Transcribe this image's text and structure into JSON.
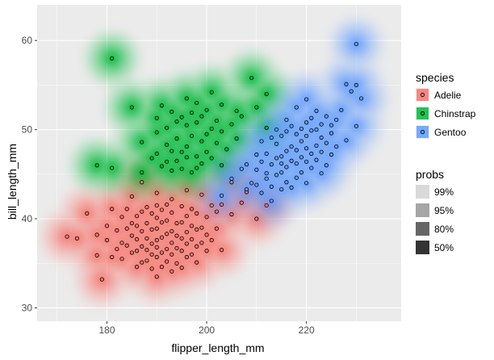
{
  "chart_data": {
    "type": "scatter",
    "overlay": "2d density contour bands (highest density regions)",
    "xlabel": "flipper_length_mm",
    "ylabel": "bill_length_mm",
    "xlim": [
      166,
      239
    ],
    "ylim": [
      28.5,
      64.0
    ],
    "x_ticks": [
      180,
      200,
      220
    ],
    "y_ticks": [
      30,
      40,
      50,
      60
    ],
    "grid": true,
    "legend_position": "right",
    "color_legend": {
      "title": "species",
      "entries": [
        {
          "label": "Adelie",
          "color": "#F8766D"
        },
        {
          "label": "Chinstrap",
          "color": "#00BA38"
        },
        {
          "label": "Gentoo",
          "color": "#619CFF"
        }
      ]
    },
    "probs_legend": {
      "title": "probs",
      "entries": [
        {
          "label": "99%",
          "fill": "#d9d9d9"
        },
        {
          "label": "95%",
          "fill": "#a6a6a6"
        },
        {
          "label": "80%",
          "fill": "#666666"
        },
        {
          "label": "50%",
          "fill": "#333333"
        }
      ]
    },
    "series": [
      {
        "name": "Adelie",
        "color": "#F8766D",
        "points": [
          [
            172,
            38.0
          ],
          [
            174,
            37.8
          ],
          [
            176,
            40.6
          ],
          [
            178,
            38.2
          ],
          [
            178,
            35.9
          ],
          [
            179,
            33.2
          ],
          [
            180,
            37.6
          ],
          [
            180,
            39.2
          ],
          [
            181,
            35.7
          ],
          [
            181,
            41.1
          ],
          [
            182,
            36.6
          ],
          [
            182,
            38.7
          ],
          [
            183,
            35.5
          ],
          [
            183,
            37.3
          ],
          [
            183,
            40.2
          ],
          [
            184,
            37.0
          ],
          [
            184,
            38.9
          ],
          [
            184,
            41.1
          ],
          [
            185,
            36.2
          ],
          [
            185,
            38.1
          ],
          [
            185,
            39.5
          ],
          [
            185,
            42.5
          ],
          [
            186,
            34.6
          ],
          [
            186,
            36.4
          ],
          [
            186,
            37.7
          ],
          [
            186,
            39.2
          ],
          [
            186,
            40.3
          ],
          [
            187,
            35.1
          ],
          [
            187,
            36.9
          ],
          [
            187,
            38.6
          ],
          [
            187,
            40.8
          ],
          [
            187,
            44.1
          ],
          [
            188,
            35.3
          ],
          [
            188,
            36.5
          ],
          [
            188,
            37.8
          ],
          [
            188,
            39.5
          ],
          [
            188,
            41.3
          ],
          [
            189,
            34.4
          ],
          [
            189,
            36.0
          ],
          [
            189,
            37.2
          ],
          [
            189,
            38.8
          ],
          [
            189,
            40.6
          ],
          [
            190,
            33.5
          ],
          [
            190,
            35.7
          ],
          [
            190,
            36.8
          ],
          [
            190,
            37.6
          ],
          [
            190,
            38.9
          ],
          [
            190,
            40.1
          ],
          [
            190,
            41.5
          ],
          [
            190,
            42.9
          ],
          [
            191,
            34.6
          ],
          [
            191,
            36.2
          ],
          [
            191,
            37.9
          ],
          [
            191,
            39.6
          ],
          [
            191,
            41.0
          ],
          [
            192,
            35.2
          ],
          [
            192,
            36.6
          ],
          [
            192,
            38.3
          ],
          [
            192,
            39.8
          ],
          [
            192,
            41.6
          ],
          [
            193,
            34.1
          ],
          [
            193,
            36.0
          ],
          [
            193,
            37.3
          ],
          [
            193,
            38.6
          ],
          [
            193,
            40.7
          ],
          [
            193,
            42.2
          ],
          [
            194,
            35.0
          ],
          [
            194,
            36.7
          ],
          [
            194,
            38.1
          ],
          [
            194,
            39.5
          ],
          [
            195,
            34.5
          ],
          [
            195,
            36.4
          ],
          [
            195,
            37.8
          ],
          [
            195,
            39.6
          ],
          [
            195,
            41.4
          ],
          [
            196,
            35.7
          ],
          [
            196,
            37.2
          ],
          [
            196,
            38.5
          ],
          [
            196,
            40.3
          ],
          [
            196,
            43.2
          ],
          [
            197,
            36.0
          ],
          [
            197,
            37.7
          ],
          [
            197,
            39.2
          ],
          [
            197,
            41.1
          ],
          [
            198,
            35.1
          ],
          [
            198,
            36.9
          ],
          [
            198,
            38.8
          ],
          [
            198,
            40.6
          ],
          [
            199,
            37.3
          ],
          [
            199,
            39.0
          ],
          [
            199,
            42.7
          ],
          [
            200,
            36.4
          ],
          [
            200,
            38.2
          ],
          [
            200,
            40.2
          ],
          [
            201,
            37.6
          ],
          [
            201,
            41.5
          ],
          [
            202,
            38.9
          ],
          [
            202,
            40.8
          ],
          [
            203,
            36.5
          ],
          [
            203,
            41.6
          ],
          [
            205,
            40.5
          ],
          [
            205,
            44.1
          ],
          [
            207,
            41.8
          ],
          [
            208,
            43.0
          ],
          [
            210,
            40.0
          ],
          [
            212,
            41.5
          ]
        ]
      },
      {
        "name": "Chinstrap",
        "color": "#00BA38",
        "points": [
          [
            181,
            58.0
          ],
          [
            178,
            46.0
          ],
          [
            181,
            45.7
          ],
          [
            185,
            52.5
          ],
          [
            187,
            48.6
          ],
          [
            187,
            45.2
          ],
          [
            189,
            46.8
          ],
          [
            190,
            49.7
          ],
          [
            190,
            47.3
          ],
          [
            190,
            51.3
          ],
          [
            191,
            45.9
          ],
          [
            191,
            52.7
          ],
          [
            192,
            46.4
          ],
          [
            192,
            50.2
          ],
          [
            192,
            48.3
          ],
          [
            193,
            47.6
          ],
          [
            193,
            52.0
          ],
          [
            193,
            45.4
          ],
          [
            194,
            49.0
          ],
          [
            194,
            46.5
          ],
          [
            194,
            50.9
          ],
          [
            195,
            47.5
          ],
          [
            195,
            45.6
          ],
          [
            195,
            51.4
          ],
          [
            196,
            48.1
          ],
          [
            196,
            46.9
          ],
          [
            196,
            53.5
          ],
          [
            196,
            50.5
          ],
          [
            197,
            45.2
          ],
          [
            197,
            49.3
          ],
          [
            197,
            51.9
          ],
          [
            198,
            47.0
          ],
          [
            198,
            50.8
          ],
          [
            198,
            45.7
          ],
          [
            198,
            53.0
          ],
          [
            199,
            48.7
          ],
          [
            199,
            46.2
          ],
          [
            199,
            51.5
          ],
          [
            200,
            49.5
          ],
          [
            200,
            47.5
          ],
          [
            200,
            52.2
          ],
          [
            201,
            46.8
          ],
          [
            201,
            50.1
          ],
          [
            201,
            54.2
          ],
          [
            202,
            48.5
          ],
          [
            202,
            51.0
          ],
          [
            203,
            46.0
          ],
          [
            203,
            49.8
          ],
          [
            203,
            52.8
          ],
          [
            204,
            47.8
          ],
          [
            205,
            50.6
          ],
          [
            206,
            52.1
          ],
          [
            206,
            49.0
          ],
          [
            207,
            51.5
          ],
          [
            209,
            55.8
          ],
          [
            210,
            52.5
          ],
          [
            212,
            50.2
          ],
          [
            212,
            54.0
          ]
        ]
      },
      {
        "name": "Gentoo",
        "color": "#619CFF",
        "points": [
          [
            203,
            42.6
          ],
          [
            205,
            44.5
          ],
          [
            207,
            45.6
          ],
          [
            208,
            46.1
          ],
          [
            208,
            43.3
          ],
          [
            209,
            44.0
          ],
          [
            210,
            45.5
          ],
          [
            210,
            47.2
          ],
          [
            210,
            43.8
          ],
          [
            211,
            46.4
          ],
          [
            211,
            48.7
          ],
          [
            211,
            42.9
          ],
          [
            212,
            44.5
          ],
          [
            212,
            47.3
          ],
          [
            212,
            45.1
          ],
          [
            213,
            42.0
          ],
          [
            213,
            46.1
          ],
          [
            213,
            49.1
          ],
          [
            213,
            43.6
          ],
          [
            214,
            44.9
          ],
          [
            214,
            46.8
          ],
          [
            214,
            48.4
          ],
          [
            214,
            50.0
          ],
          [
            215,
            43.3
          ],
          [
            215,
            45.2
          ],
          [
            215,
            47.0
          ],
          [
            215,
            49.3
          ],
          [
            215,
            46.2
          ],
          [
            216,
            44.1
          ],
          [
            216,
            45.8
          ],
          [
            216,
            47.6
          ],
          [
            216,
            49.8
          ],
          [
            216,
            51.1
          ],
          [
            217,
            43.5
          ],
          [
            217,
            46.5
          ],
          [
            217,
            48.1
          ],
          [
            217,
            50.4
          ],
          [
            218,
            44.6
          ],
          [
            218,
            46.2
          ],
          [
            218,
            47.7
          ],
          [
            218,
            49.5
          ],
          [
            218,
            52.5
          ],
          [
            219,
            45.2
          ],
          [
            219,
            46.9
          ],
          [
            219,
            48.7
          ],
          [
            219,
            50.1
          ],
          [
            220,
            44.0
          ],
          [
            220,
            46.4
          ],
          [
            220,
            47.9
          ],
          [
            220,
            49.3
          ],
          [
            220,
            50.8
          ],
          [
            220,
            53.4
          ],
          [
            221,
            45.7
          ],
          [
            221,
            47.3
          ],
          [
            221,
            49.9
          ],
          [
            221,
            51.3
          ],
          [
            222,
            46.6
          ],
          [
            222,
            48.2
          ],
          [
            222,
            50.0
          ],
          [
            222,
            52.1
          ],
          [
            223,
            45.1
          ],
          [
            223,
            47.5
          ],
          [
            223,
            49.1
          ],
          [
            223,
            50.6
          ],
          [
            224,
            46.0
          ],
          [
            224,
            48.5
          ],
          [
            224,
            51.5
          ],
          [
            225,
            47.2
          ],
          [
            225,
            49.6
          ],
          [
            225,
            50.5
          ],
          [
            226,
            48.1
          ],
          [
            226,
            51.1
          ],
          [
            227,
            52.2
          ],
          [
            228,
            55.1
          ],
          [
            228,
            48.8
          ],
          [
            229,
            54.3
          ],
          [
            230,
            59.6
          ],
          [
            230,
            55.0
          ],
          [
            231,
            53.5
          ],
          [
            230,
            50.4
          ]
        ]
      }
    ]
  }
}
